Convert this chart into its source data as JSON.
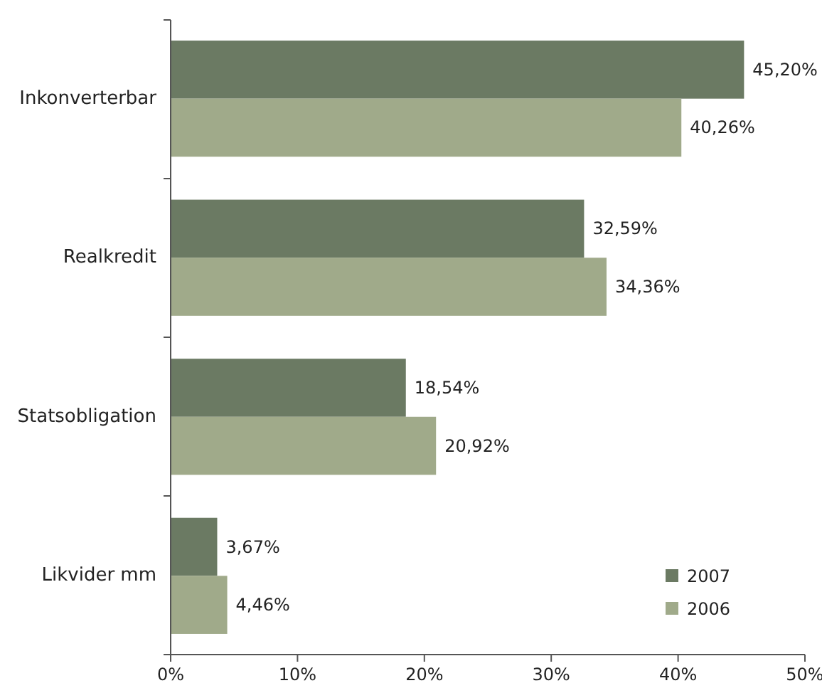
{
  "chart_data": {
    "type": "bar",
    "orientation": "horizontal",
    "categories": [
      "Inkonverterbar",
      "Realkredit",
      "Statsobligation",
      "Likvider mm"
    ],
    "series": [
      {
        "name": "2007",
        "color": "#6b7a63",
        "values": [
          45.2,
          32.59,
          18.54,
          3.67
        ],
        "value_labels": [
          "45,20%",
          "32,59%",
          "18,54%",
          "3,67%"
        ]
      },
      {
        "name": "2006",
        "color": "#a0aa8a",
        "values": [
          40.26,
          34.36,
          20.92,
          4.46
        ],
        "value_labels": [
          "40,26%",
          "34,36%",
          "20,92%",
          "4,46%"
        ]
      }
    ],
    "xlim": [
      0,
      50
    ],
    "xticks": [
      {
        "value": 0,
        "label": "0%"
      },
      {
        "value": 10,
        "label": "10%"
      },
      {
        "value": 20,
        "label": "20%"
      },
      {
        "value": 30,
        "label": "30%"
      },
      {
        "value": 40,
        "label": "40%"
      },
      {
        "value": 50,
        "label": "50%"
      }
    ],
    "grid": false,
    "legend": "bottom right"
  }
}
